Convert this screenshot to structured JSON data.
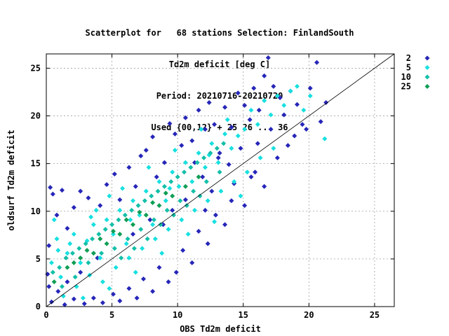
{
  "title_lines": [
    "Scatterplot for   68 stations Selection: FinlandSouth",
    "Td2m deficit [deg C]",
    "Period: 20210716-20210720",
    "Used {00,12} + 25 26 ... 36"
  ],
  "chart_data": {
    "type": "scatter",
    "xlabel": "OBS Td2m deficit",
    "ylabel": "oldsurf Td2m deficit",
    "xlim": [
      0,
      26.5
    ],
    "ylim": [
      0,
      26.5
    ],
    "xticks": [
      0,
      5,
      10,
      15,
      20,
      25
    ],
    "yticks": [
      0,
      5,
      10,
      15,
      20,
      25
    ],
    "grid": true,
    "legend_position": "right",
    "diagonal_line": [
      [
        0,
        0
      ],
      [
        26.5,
        26.5
      ]
    ],
    "series": [
      {
        "name": "2",
        "color": "#2626b8",
        "marker": "diamond",
        "points": [
          [
            0.3,
            12.5
          ],
          [
            0.5,
            11.8
          ],
          [
            1.2,
            12.2
          ],
          [
            0.8,
            9.6
          ],
          [
            0.2,
            6.4
          ],
          [
            1.6,
            8.2
          ],
          [
            2.1,
            10.4
          ],
          [
            2.6,
            12.1
          ],
          [
            3.2,
            11.4
          ],
          [
            4.1,
            10.6
          ],
          [
            4.6,
            12.8
          ],
          [
            5.2,
            13.9
          ],
          [
            5.6,
            11.2
          ],
          [
            6.3,
            14.6
          ],
          [
            6.8,
            12.6
          ],
          [
            7.2,
            15.8
          ],
          [
            7.6,
            16.4
          ],
          [
            8.1,
            17.8
          ],
          [
            8.4,
            13.6
          ],
          [
            9.0,
            15.1
          ],
          [
            9.4,
            19.2
          ],
          [
            9.8,
            18.1
          ],
          [
            10.3,
            16.9
          ],
          [
            10.6,
            19.8
          ],
          [
            11.1,
            17.4
          ],
          [
            11.6,
            20.6
          ],
          [
            12.1,
            18.6
          ],
          [
            12.4,
            21.4
          ],
          [
            12.8,
            19.1
          ],
          [
            13.2,
            16.1
          ],
          [
            13.6,
            20.9
          ],
          [
            14.1,
            18.8
          ],
          [
            14.6,
            22.4
          ],
          [
            15.1,
            21.1
          ],
          [
            15.5,
            19.6
          ],
          [
            15.8,
            22.9
          ],
          [
            16.2,
            20.6
          ],
          [
            16.6,
            24.2
          ],
          [
            16.9,
            26.1
          ],
          [
            17.3,
            23.1
          ],
          [
            17.8,
            21.9
          ],
          [
            18.1,
            20.1
          ],
          [
            18.6,
            22.6
          ],
          [
            19.1,
            21.2
          ],
          [
            19.5,
            19.1
          ],
          [
            20.1,
            22.9
          ],
          [
            20.6,
            25.6
          ],
          [
            21.3,
            21.4
          ],
          [
            20.9,
            19.4
          ],
          [
            19.8,
            18.6
          ],
          [
            18.4,
            16.9
          ],
          [
            17.6,
            15.6
          ],
          [
            16.6,
            12.6
          ],
          [
            15.9,
            14.1
          ],
          [
            15.1,
            10.6
          ],
          [
            14.3,
            12.9
          ],
          [
            13.6,
            8.6
          ],
          [
            12.9,
            9.6
          ],
          [
            12.3,
            6.6
          ],
          [
            11.6,
            7.9
          ],
          [
            11.1,
            4.6
          ],
          [
            10.4,
            5.9
          ],
          [
            9.9,
            3.6
          ],
          [
            9.3,
            2.6
          ],
          [
            8.6,
            4.1
          ],
          [
            8.1,
            1.6
          ],
          [
            7.4,
            2.9
          ],
          [
            6.9,
            0.9
          ],
          [
            6.3,
            1.9
          ],
          [
            5.6,
            0.6
          ],
          [
            5.1,
            1.3
          ],
          [
            4.3,
            0.4
          ],
          [
            3.6,
            0.9
          ],
          [
            2.9,
            0.3
          ],
          [
            2.1,
            0.8
          ],
          [
            1.4,
            0.2
          ],
          [
            0.9,
            1.6
          ],
          [
            0.4,
            0.5
          ],
          [
            0.1,
            3.4
          ],
          [
            0.2,
            2.1
          ],
          [
            10.6,
            11.2
          ],
          [
            11.9,
            13.6
          ],
          [
            12.6,
            12.1
          ],
          [
            13.9,
            14.9
          ],
          [
            14.8,
            16.6
          ],
          [
            9.6,
            10.1
          ],
          [
            8.9,
            8.6
          ],
          [
            7.9,
            9.1
          ],
          [
            6.6,
            7.6
          ],
          [
            3.9,
            5.1
          ],
          [
            2.6,
            3.6
          ],
          [
            1.6,
            2.6
          ],
          [
            16.1,
            17.1
          ],
          [
            17.1,
            18.6
          ],
          [
            18.9,
            17.9
          ],
          [
            15.6,
            13.6
          ],
          [
            14.1,
            11.1
          ],
          [
            12.1,
            10.1
          ],
          [
            13.1,
            15.6
          ],
          [
            11.3,
            15.1
          ]
        ]
      },
      {
        "name": "5",
        "color": "#18e0e0",
        "marker": "diamond",
        "points": [
          [
            0.4,
            4.6
          ],
          [
            0.8,
            7.1
          ],
          [
            1.1,
            3.1
          ],
          [
            1.6,
            5.6
          ],
          [
            2.1,
            7.6
          ],
          [
            2.6,
            4.6
          ],
          [
            3.1,
            6.9
          ],
          [
            3.6,
            8.6
          ],
          [
            4.1,
            5.1
          ],
          [
            4.6,
            9.1
          ],
          [
            5.1,
            7.6
          ],
          [
            5.6,
            10.1
          ],
          [
            6.1,
            6.6
          ],
          [
            6.6,
            11.1
          ],
          [
            7.1,
            9.6
          ],
          [
            7.6,
            12.1
          ],
          [
            8.1,
            8.6
          ],
          [
            8.6,
            13.1
          ],
          [
            9.1,
            11.1
          ],
          [
            9.6,
            14.1
          ],
          [
            10.1,
            12.6
          ],
          [
            10.6,
            15.1
          ],
          [
            11.1,
            13.1
          ],
          [
            11.6,
            16.1
          ],
          [
            12.1,
            14.6
          ],
          [
            12.6,
            17.1
          ],
          [
            13.1,
            15.1
          ],
          [
            13.6,
            18.1
          ],
          [
            14.1,
            16.6
          ],
          [
            14.6,
            17.9
          ],
          [
            15.1,
            18.6
          ],
          [
            15.6,
            20.6
          ],
          [
            16.1,
            19.1
          ],
          [
            16.6,
            21.6
          ],
          [
            17.1,
            20.1
          ],
          [
            17.6,
            22.1
          ],
          [
            18.1,
            21.1
          ],
          [
            18.6,
            22.6
          ],
          [
            19.1,
            23.1
          ],
          [
            19.6,
            20.6
          ],
          [
            20.1,
            22.1
          ],
          [
            21.2,
            17.6
          ],
          [
            0.6,
            9.1
          ],
          [
            1.3,
            1.1
          ],
          [
            2.3,
            2.1
          ],
          [
            3.3,
            3.3
          ],
          [
            4.3,
            2.6
          ],
          [
            5.3,
            4.1
          ],
          [
            6.3,
            5.1
          ],
          [
            7.3,
            6.1
          ],
          [
            8.3,
            7.1
          ],
          [
            9.3,
            8.1
          ],
          [
            10.3,
            9.1
          ],
          [
            11.3,
            10.1
          ],
          [
            12.3,
            11.1
          ],
          [
            13.3,
            12.1
          ],
          [
            14.3,
            13.1
          ],
          [
            15.3,
            14.1
          ],
          [
            16.3,
            15.6
          ],
          [
            17.3,
            16.6
          ],
          [
            5.8,
            12.4
          ],
          [
            4.8,
            11.6
          ],
          [
            3.8,
            10.1
          ],
          [
            7.8,
            14.6
          ],
          [
            9.8,
            16.4
          ],
          [
            11.8,
            18.6
          ],
          [
            13.8,
            19.6
          ],
          [
            8.8,
            5.6
          ],
          [
            10.8,
            7.6
          ],
          [
            12.8,
            8.9
          ],
          [
            14.8,
            11.6
          ],
          [
            6.8,
            3.6
          ],
          [
            4.8,
            1.9
          ],
          [
            2.8,
            0.9
          ],
          [
            1.8,
            6.6
          ],
          [
            0.9,
            5.9
          ],
          [
            3.4,
            9.4
          ],
          [
            6.4,
            9.1
          ],
          [
            9.4,
            12.4
          ],
          [
            12.4,
            15.9
          ]
        ]
      },
      {
        "name": "10",
        "color": "#14bfa8",
        "marker": "diamond",
        "points": [
          [
            1.0,
            4.1
          ],
          [
            1.5,
            5.1
          ],
          [
            2.0,
            5.6
          ],
          [
            2.5,
            6.1
          ],
          [
            3.0,
            6.6
          ],
          [
            3.5,
            7.1
          ],
          [
            4.0,
            7.6
          ],
          [
            4.5,
            8.1
          ],
          [
            5.0,
            8.6
          ],
          [
            5.5,
            9.1
          ],
          [
            6.0,
            9.6
          ],
          [
            6.5,
            10.1
          ],
          [
            7.0,
            10.6
          ],
          [
            7.5,
            11.1
          ],
          [
            8.0,
            11.6
          ],
          [
            8.5,
            12.1
          ],
          [
            9.0,
            12.6
          ],
          [
            9.5,
            13.1
          ],
          [
            10.0,
            13.6
          ],
          [
            10.5,
            14.1
          ],
          [
            11.0,
            14.6
          ],
          [
            11.5,
            15.1
          ],
          [
            12.0,
            15.6
          ],
          [
            12.5,
            16.1
          ],
          [
            13.0,
            16.6
          ],
          [
            13.5,
            17.1
          ],
          [
            3.2,
            4.6
          ],
          [
            4.2,
            5.6
          ],
          [
            5.2,
            6.1
          ],
          [
            6.2,
            7.1
          ],
          [
            7.2,
            8.1
          ],
          [
            8.2,
            9.1
          ],
          [
            9.2,
            10.1
          ],
          [
            10.2,
            11.1
          ],
          [
            11.2,
            12.1
          ],
          [
            12.2,
            13.1
          ],
          [
            13.2,
            14.1
          ],
          [
            2.2,
            3.1
          ],
          [
            1.2,
            2.1
          ],
          [
            0.5,
            3.6
          ],
          [
            5.7,
            5.1
          ],
          [
            6.7,
            6.1
          ],
          [
            7.7,
            7.1
          ],
          [
            8.7,
            8.6
          ],
          [
            9.7,
            9.6
          ],
          [
            10.7,
            10.6
          ],
          [
            11.7,
            11.6
          ]
        ]
      },
      {
        "name": "25",
        "color": "#0f9e55",
        "marker": "diamond",
        "points": [
          [
            0.6,
            2.6
          ],
          [
            1.6,
            4.1
          ],
          [
            2.6,
            5.1
          ],
          [
            3.6,
            5.6
          ],
          [
            4.6,
            6.6
          ],
          [
            5.6,
            7.6
          ],
          [
            6.6,
            8.6
          ],
          [
            7.6,
            9.6
          ],
          [
            8.6,
            10.6
          ],
          [
            9.6,
            11.6
          ],
          [
            10.6,
            12.6
          ],
          [
            11.6,
            13.6
          ],
          [
            4.1,
            7.1
          ],
          [
            5.1,
            7.9
          ],
          [
            6.1,
            9.1
          ],
          [
            7.1,
            9.9
          ],
          [
            8.1,
            10.9
          ],
          [
            9.1,
            11.9
          ],
          [
            3.1,
            5.9
          ],
          [
            2.1,
            4.6
          ]
        ]
      }
    ]
  }
}
